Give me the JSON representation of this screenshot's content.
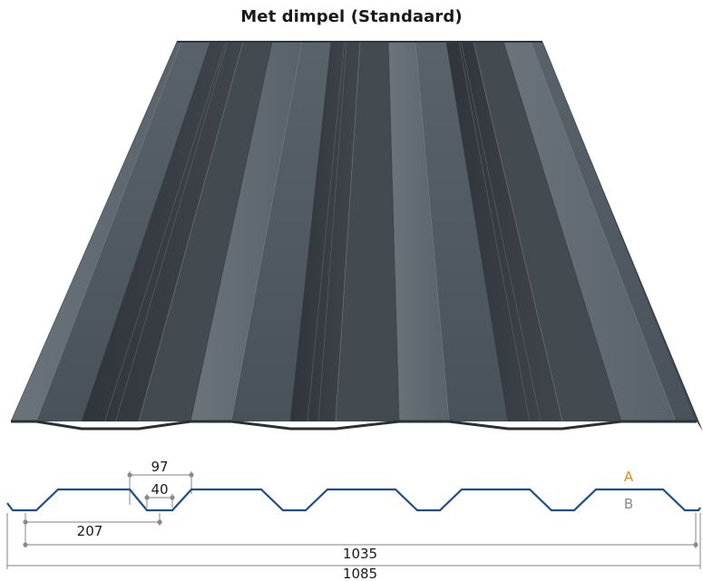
{
  "title": "Met dimpel (Standaard)",
  "colors": {
    "sheet": "#4d555c",
    "sheet_dark": "#363c41",
    "sheet_light": "#5e676e",
    "profile_line": "#1d4f8c",
    "dim_line": "#9a9a9a",
    "label_a": "#e8891c",
    "label_b": "#8a8a8a"
  },
  "profile": {
    "dimensions": {
      "top_width": "97",
      "dimple_width": "40",
      "pitch": "207",
      "cover_width": "1035",
      "total_width": "1085"
    },
    "side_labels": {
      "a": "A",
      "b": "B"
    }
  }
}
